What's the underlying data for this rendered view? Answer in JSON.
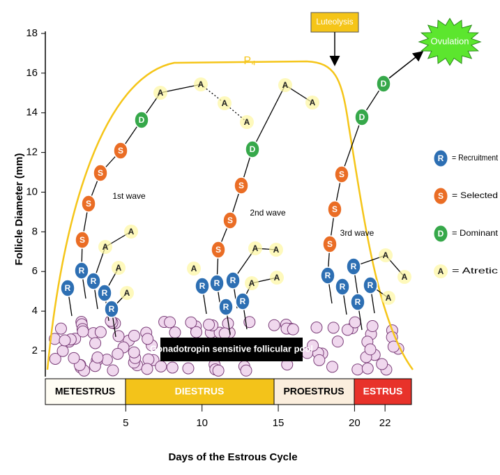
{
  "y_axis": {
    "label": "Follicle Diameter (mm)",
    "ticks": [
      2,
      4,
      6,
      8,
      10,
      12,
      14,
      16,
      18
    ]
  },
  "x_axis": {
    "label": "Days of the Estrous Cycle",
    "ticks": [
      5,
      10,
      15,
      20,
      22
    ]
  },
  "phases": [
    "METESTRUS",
    "DIESTRUS",
    "PROESTRUS",
    "ESTRUS"
  ],
  "pool_label": "Gonadotropin sensitive  follicular pool",
  "hormone": "P₄",
  "events": {
    "luteolysis": "Luteolysis",
    "ovulation": "Ovulation"
  },
  "waves": [
    "1st wave",
    "2nd wave",
    "3rd wave"
  ],
  "nodes": [
    "R",
    "R",
    "R",
    "R",
    "R",
    "S",
    "S",
    "S",
    "S",
    "D",
    "A",
    "A",
    "A",
    "A",
    "A",
    "A",
    "A",
    "A",
    "R",
    "R",
    "R",
    "R",
    "R",
    "S",
    "S",
    "S",
    "D",
    "A",
    "A",
    "A",
    "A",
    "A",
    "A",
    "A",
    "R",
    "R",
    "R",
    "R",
    "R",
    "S",
    "S",
    "S",
    "D",
    "D",
    "A",
    "A",
    "A"
  ],
  "legend": [
    {
      "symbol": "R",
      "text": "= Recruitment"
    },
    {
      "symbol": "S",
      "text": "= Selected"
    },
    {
      "symbol": "D",
      "text": "= Dominant"
    },
    {
      "symbol": "A",
      "text": "= Atretic"
    }
  ]
}
